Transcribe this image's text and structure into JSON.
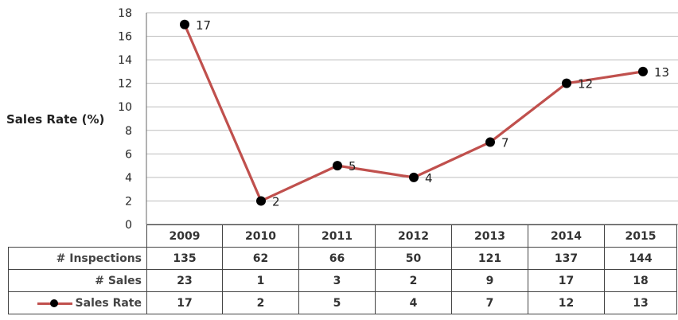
{
  "chart_data": {
    "type": "line",
    "ylabel": "Sales Rate (%)",
    "ylim": [
      0,
      18
    ],
    "yticks": [
      "0",
      "2",
      "4",
      "6",
      "8",
      "10",
      "12",
      "14",
      "16",
      "18"
    ],
    "categories": [
      "2009",
      "2010",
      "2011",
      "2012",
      "2013",
      "2014",
      "2015"
    ],
    "series": [
      {
        "name": "Sales Rate",
        "values": [
          17,
          2,
          5,
          4,
          7,
          12,
          13
        ],
        "labels": [
          "17",
          "2",
          "5",
          "4",
          "7",
          "12",
          "13"
        ]
      }
    ],
    "grid": true,
    "line_color": "#c0504d",
    "marker_color": "#000000"
  },
  "data_table": {
    "headers": [
      "2009",
      "2010",
      "2011",
      "2012",
      "2013",
      "2014",
      "2015"
    ],
    "rows": [
      {
        "label": "# Inspections",
        "values": [
          "135",
          "62",
          "66",
          "50",
          "121",
          "137",
          "144"
        ]
      },
      {
        "label": "# Sales",
        "values": [
          "23",
          "1",
          "3",
          "2",
          "9",
          "17",
          "18"
        ]
      },
      {
        "label": "Sales Rate",
        "values": [
          "17",
          "2",
          "5",
          "4",
          "7",
          "12",
          "13"
        ],
        "legend_key": true
      }
    ]
  }
}
